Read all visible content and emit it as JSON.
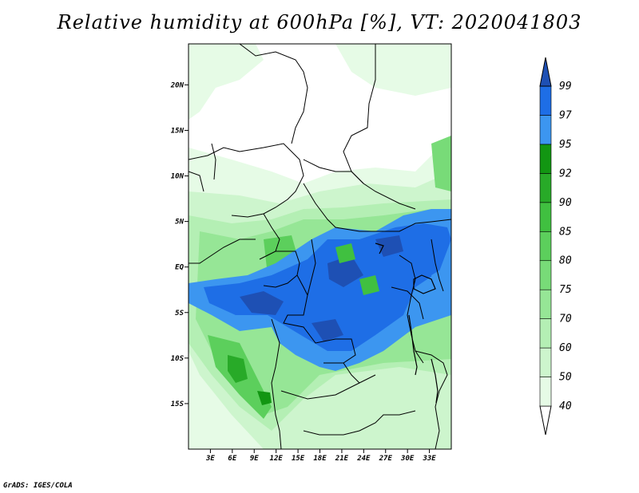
{
  "title": "Relative humidity at 600hPa [%], VT: 2020041803",
  "credit": "GrADS: IGES/COLA",
  "map": {
    "lon_range": [
      0,
      36
    ],
    "lat_range": [
      -20,
      24.5
    ],
    "lat_ticks": [
      "20N",
      "15N",
      "10N",
      "5N",
      "EQ",
      "5S",
      "10S",
      "15S"
    ],
    "lon_ticks": [
      "3E",
      "6E",
      "9E",
      "12E",
      "15E",
      "18E",
      "21E",
      "24E",
      "27E",
      "30E",
      "33E"
    ]
  },
  "colorbar": {
    "levels": [
      "40",
      "50",
      "60",
      "70",
      "75",
      "80",
      "85",
      "90",
      "92",
      "95",
      "97",
      "99"
    ],
    "colors": {
      "lt40": "#ffffff",
      "40-50": "#e6fbe6",
      "50-60": "#cdf5cd",
      "60-70": "#b4efb4",
      "70-75": "#96e696",
      "75-80": "#78db78",
      "80-85": "#5ccf5c",
      "85-90": "#40c040",
      "90-92": "#28aa28",
      "92-95": "#129612",
      "95-97": "#3c96f0",
      "97-99": "#1e6ee6",
      "gt99": "#1e50b4"
    }
  }
}
